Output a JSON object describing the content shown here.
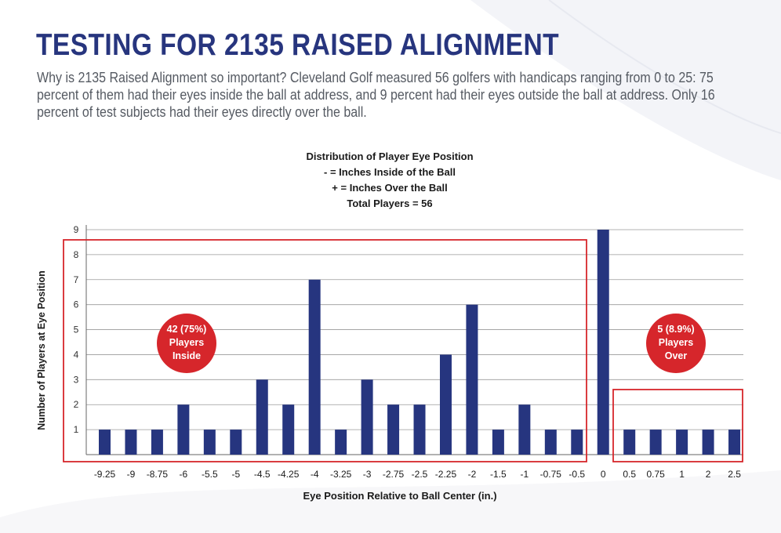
{
  "page": {
    "title": "TESTING FOR 2135 RAISED ALIGNMENT",
    "intro": "Why is 2135 Raised Alignment so important? Cleveland Golf measured 56 golfers with handicaps ranging from 0 to 25: 75 percent of them had their eyes inside the ball at address, and 9 percent had their eyes outside the ball at address. Only 16 percent of test subjects had their eyes directly over the ball."
  },
  "colors": {
    "title": "#27357e",
    "bar": "#26357f",
    "highlight": "#d6262b",
    "grid": "#9a9a9a"
  },
  "chart_data": {
    "type": "bar",
    "title_lines": [
      "Distribution of Player Eye Position",
      "- = Inches Inside of the Ball",
      "+ = Inches Over the Ball",
      "Total Players = 56"
    ],
    "xlabel": "Eye Position Relative to Ball Center (in.)",
    "ylabel": "Number of Players at Eye Position",
    "ylim": [
      0,
      9
    ],
    "yticks": [
      1,
      2,
      3,
      4,
      5,
      6,
      7,
      8,
      9
    ],
    "grid": true,
    "categories": [
      "-9.25",
      "-9",
      "-8.75",
      "-6",
      "-5.5",
      "-5",
      "-4.5",
      "-4.25",
      "-4",
      "-3.25",
      "-3",
      "-2.75",
      "-2.5",
      "-2.25",
      "-2",
      "-1.5",
      "-1",
      "-0.75",
      "-0.5",
      "0",
      "0.5",
      "0.75",
      "1",
      "2",
      "2.5"
    ],
    "values": [
      1,
      1,
      1,
      2,
      1,
      1,
      3,
      2,
      7,
      1,
      3,
      2,
      2,
      4,
      6,
      1,
      2,
      1,
      1,
      9,
      1,
      1,
      1,
      1,
      1
    ],
    "annotations": [
      {
        "group": "inside",
        "lines": [
          "42 (75%)",
          "Players",
          "Inside"
        ]
      },
      {
        "group": "over",
        "lines": [
          "5 (8.9%)",
          "Players",
          "Over"
        ]
      }
    ]
  }
}
